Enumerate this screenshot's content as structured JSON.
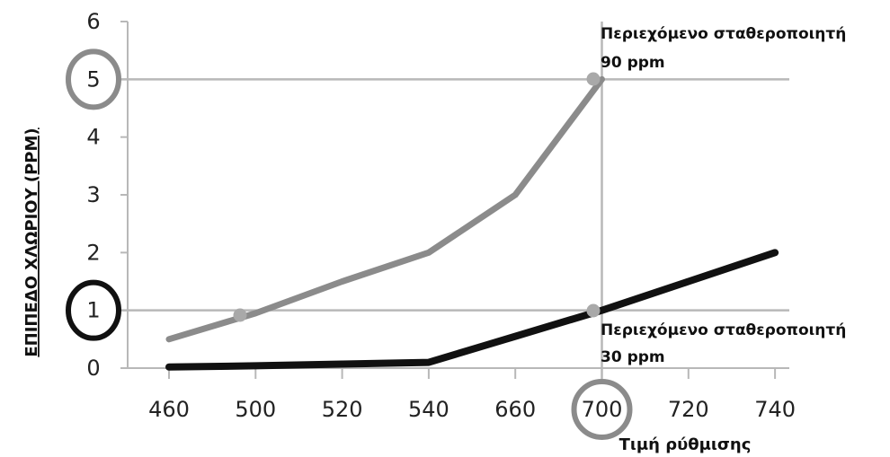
{
  "chart_data": {
    "type": "line",
    "categories": [
      "460",
      "500",
      "520",
      "540",
      "660",
      "700",
      "720",
      "740"
    ],
    "series": [
      {
        "values": [
          0.5,
          0.95,
          1.5,
          2.0,
          3.0,
          5.0,
          null,
          null
        ],
        "color": "#8b8b8b"
      },
      {
        "values": [
          0.02,
          0.04,
          0.07,
          0.1,
          0.55,
          1.0,
          1.5,
          2.0
        ],
        "color": "#111111"
      }
    ],
    "ylabel": "ΕΠΙΠΕΔΟ ΧΛΩΡΙΟΥ (PPM)",
    "xlabel": "Τιμή ρύθμισης",
    "ylim": [
      0,
      6
    ],
    "yticks": [
      "0",
      "1",
      "2",
      "3",
      "4",
      "5",
      "6"
    ],
    "grid": false,
    "reference_lines": [
      {
        "axis": "y",
        "value": 5
      },
      {
        "axis": "y",
        "value": 1
      },
      {
        "axis": "x",
        "category": "700"
      }
    ],
    "highlighted_ticks": [
      {
        "axis": "y",
        "label": "5",
        "ring_color": "#8b8b8b"
      },
      {
        "axis": "y",
        "label": "1",
        "ring_color": "#111111"
      },
      {
        "axis": "x",
        "label": "700",
        "ring_color": "#8b8b8b"
      }
    ],
    "annotations": {
      "top": {
        "line1": "Περιεχόμενο σταθεροποιητή",
        "line2": "90 ppm"
      },
      "bottom": {
        "line1": "Περιεχόμενο σταθεροποιητή",
        "line2": "30 ppm"
      }
    }
  }
}
